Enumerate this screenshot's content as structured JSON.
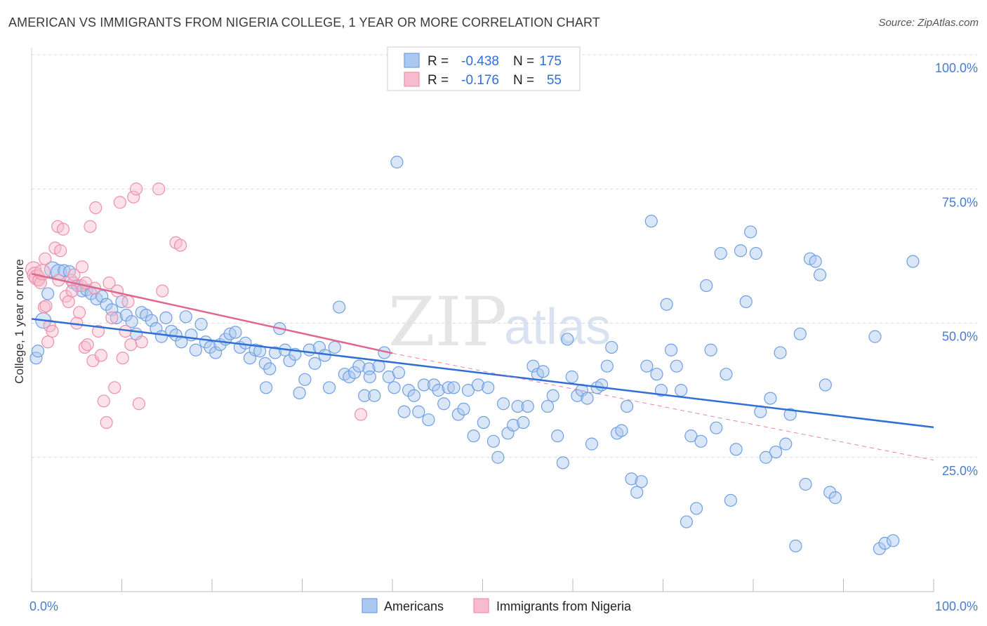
{
  "title": "AMERICAN VS IMMIGRANTS FROM NIGERIA COLLEGE, 1 YEAR OR MORE CORRELATION CHART",
  "source": "Source: ZipAtlas.com",
  "watermark": {
    "zip": "ZIP",
    "atlas": "atlas"
  },
  "colors": {
    "blue": "#6f9fe3",
    "blue_fill": "#aac8f0",
    "blue_line": "#2f6fd6",
    "pink": "#ee8fab",
    "pink_fill": "#f6bccd",
    "pink_line": "#e0668e",
    "grid": "#d9d9d9",
    "tick": "#4a7bd0"
  },
  "legend": {
    "rows": [
      {
        "r_label": "R =",
        "r_value": "-0.438",
        "n_label": "N =",
        "n_value": "175"
      },
      {
        "r_label": "R =",
        "r_value": "-0.176",
        "n_label": "N =",
        "n_value": "55"
      }
    ]
  },
  "bottom_legend": [
    "Americans",
    "Immigrants from Nigeria"
  ],
  "chart_data": {
    "type": "scatter",
    "ylabel": "College, 1 year or more",
    "xlim": [
      0,
      100
    ],
    "ylim": [
      0,
      100
    ],
    "x_tick_labels": [
      "0.0%",
      "100.0%"
    ],
    "y_ticks": [
      25,
      50,
      75,
      100
    ],
    "y_tick_labels": [
      "25.0%",
      "50.0%",
      "75.0%",
      "100.0%"
    ],
    "grid": "horizontal dashed",
    "legend_placement": "top-center",
    "series": [
      {
        "name": "Americans",
        "r": -0.438,
        "n": 175,
        "trend": {
          "x": [
            0,
            100
          ],
          "y": [
            50.8,
            30.6
          ]
        },
        "points": [
          [
            0.5,
            43.5
          ],
          [
            0.7,
            44.8
          ],
          [
            1.3,
            50.5
          ],
          [
            1.8,
            55.5
          ],
          [
            2.3,
            60.0
          ],
          [
            3.0,
            59.5
          ],
          [
            3.6,
            59.8
          ],
          [
            4.2,
            59.6
          ],
          [
            4.6,
            57.5
          ],
          [
            5.1,
            57.0
          ],
          [
            5.6,
            56.0
          ],
          [
            6.1,
            56.2
          ],
          [
            6.6,
            55.5
          ],
          [
            7.2,
            54.5
          ],
          [
            7.8,
            55.0
          ],
          [
            8.3,
            53.5
          ],
          [
            8.9,
            52.5
          ],
          [
            9.4,
            51.0
          ],
          [
            10.0,
            54.0
          ],
          [
            10.5,
            51.5
          ],
          [
            11.1,
            50.3
          ],
          [
            11.6,
            48.0
          ],
          [
            12.2,
            52.0
          ],
          [
            12.7,
            51.5
          ],
          [
            13.3,
            50.5
          ],
          [
            13.8,
            49.0
          ],
          [
            14.4,
            47.5
          ],
          [
            14.9,
            51.0
          ],
          [
            15.5,
            48.5
          ],
          [
            16.0,
            47.8
          ],
          [
            16.6,
            46.5
          ],
          [
            17.1,
            51.2
          ],
          [
            17.7,
            47.8
          ],
          [
            18.2,
            45.0
          ],
          [
            18.8,
            49.8
          ],
          [
            19.3,
            46.5
          ],
          [
            19.8,
            45.5
          ],
          [
            20.4,
            44.5
          ],
          [
            20.9,
            46.0
          ],
          [
            21.5,
            47.0
          ],
          [
            22.0,
            48.0
          ],
          [
            22.6,
            48.3
          ],
          [
            23.1,
            45.5
          ],
          [
            23.7,
            46.3
          ],
          [
            24.2,
            43.5
          ],
          [
            24.8,
            45.0
          ],
          [
            25.3,
            44.8
          ],
          [
            25.9,
            42.5
          ],
          [
            26.4,
            41.5
          ],
          [
            27.0,
            44.5
          ],
          [
            27.5,
            49.0
          ],
          [
            28.1,
            45.0
          ],
          [
            28.6,
            43.0
          ],
          [
            29.2,
            44.2
          ],
          [
            29.7,
            37.0
          ],
          [
            30.3,
            39.5
          ],
          [
            30.8,
            45.0
          ],
          [
            31.4,
            42.5
          ],
          [
            31.9,
            45.5
          ],
          [
            32.5,
            44.0
          ],
          [
            33.0,
            38.0
          ],
          [
            33.6,
            45.5
          ],
          [
            34.1,
            53.0
          ],
          [
            34.7,
            40.5
          ],
          [
            35.2,
            40.0
          ],
          [
            35.8,
            40.8
          ],
          [
            36.3,
            42.0
          ],
          [
            36.9,
            36.5
          ],
          [
            37.4,
            41.5
          ],
          [
            38.0,
            36.5
          ],
          [
            38.5,
            42.0
          ],
          [
            39.1,
            44.5
          ],
          [
            39.6,
            40.0
          ],
          [
            40.2,
            38.0
          ],
          [
            40.7,
            40.8
          ],
          [
            41.3,
            33.5
          ],
          [
            41.8,
            37.5
          ],
          [
            42.4,
            36.5
          ],
          [
            42.9,
            33.5
          ],
          [
            43.5,
            38.5
          ],
          [
            44.0,
            32.0
          ],
          [
            44.6,
            38.5
          ],
          [
            45.1,
            37.5
          ],
          [
            45.7,
            35.0
          ],
          [
            46.2,
            38.0
          ],
          [
            46.8,
            38.0
          ],
          [
            47.3,
            33.0
          ],
          [
            47.9,
            34.0
          ],
          [
            48.4,
            37.5
          ],
          [
            49.0,
            29.0
          ],
          [
            49.5,
            38.5
          ],
          [
            50.1,
            31.5
          ],
          [
            50.6,
            38.0
          ],
          [
            51.2,
            28.0
          ],
          [
            51.7,
            25.0
          ],
          [
            52.3,
            35.0
          ],
          [
            52.8,
            29.5
          ],
          [
            53.4,
            31.0
          ],
          [
            53.9,
            34.5
          ],
          [
            54.5,
            31.5
          ],
          [
            55.0,
            34.5
          ],
          [
            55.6,
            42.0
          ],
          [
            56.1,
            40.5
          ],
          [
            56.7,
            41.0
          ],
          [
            57.2,
            34.5
          ],
          [
            57.8,
            36.5
          ],
          [
            58.3,
            29.0
          ],
          [
            58.9,
            24.0
          ],
          [
            59.4,
            47.0
          ],
          [
            59.9,
            40.0
          ],
          [
            60.5,
            36.5
          ],
          [
            61.0,
            37.5
          ],
          [
            61.6,
            36.0
          ],
          [
            62.1,
            27.5
          ],
          [
            62.7,
            38.0
          ],
          [
            63.2,
            38.5
          ],
          [
            63.8,
            42.0
          ],
          [
            64.3,
            45.5
          ],
          [
            64.9,
            29.5
          ],
          [
            65.4,
            30.0
          ],
          [
            66.0,
            34.5
          ],
          [
            66.5,
            21.0
          ],
          [
            67.1,
            18.5
          ],
          [
            67.6,
            20.5
          ],
          [
            68.2,
            42.0
          ],
          [
            68.7,
            69.0
          ],
          [
            69.3,
            40.5
          ],
          [
            69.8,
            37.5
          ],
          [
            70.4,
            53.5
          ],
          [
            70.9,
            45.0
          ],
          [
            71.5,
            42.0
          ],
          [
            72.0,
            37.5
          ],
          [
            72.6,
            13.0
          ],
          [
            73.1,
            29.0
          ],
          [
            73.7,
            15.5
          ],
          [
            74.2,
            28.0
          ],
          [
            74.8,
            57.0
          ],
          [
            75.3,
            45.0
          ],
          [
            75.9,
            30.5
          ],
          [
            76.4,
            63.0
          ],
          [
            77.0,
            40.5
          ],
          [
            77.5,
            17.0
          ],
          [
            78.1,
            26.5
          ],
          [
            78.6,
            63.5
          ],
          [
            79.2,
            54.0
          ],
          [
            79.7,
            67.0
          ],
          [
            80.3,
            63.0
          ],
          [
            80.8,
            33.5
          ],
          [
            81.4,
            25.0
          ],
          [
            81.9,
            36.0
          ],
          [
            82.5,
            26.0
          ],
          [
            83.0,
            44.5
          ],
          [
            83.6,
            27.5
          ],
          [
            84.1,
            33.0
          ],
          [
            84.7,
            8.5
          ],
          [
            85.2,
            48.0
          ],
          [
            85.8,
            20.0
          ],
          [
            86.3,
            62.0
          ],
          [
            86.9,
            61.5
          ],
          [
            87.4,
            59.0
          ],
          [
            88.0,
            38.5
          ],
          [
            88.5,
            18.5
          ],
          [
            89.1,
            17.5
          ],
          [
            93.5,
            47.5
          ],
          [
            94.0,
            8.0
          ],
          [
            94.6,
            9.0
          ],
          [
            97.7,
            61.5
          ],
          [
            95.5,
            9.5
          ],
          [
            40.5,
            80.0
          ],
          [
            37.5,
            40.0
          ],
          [
            26.0,
            38.0
          ]
        ]
      },
      {
        "name": "Immigrants from Nigeria",
        "r": -0.176,
        "n": 55,
        "trend": {
          "x": [
            0,
            40
          ],
          "y": [
            59.2,
            44.4
          ],
          "dashed_to": {
            "x": 100,
            "y": 24.5
          }
        },
        "points": [
          [
            0.2,
            60.0
          ],
          [
            0.4,
            59.0
          ],
          [
            0.6,
            58.5
          ],
          [
            0.8,
            58.0
          ],
          [
            1.0,
            57.5
          ],
          [
            1.2,
            59.5
          ],
          [
            1.4,
            53.0
          ],
          [
            1.6,
            53.2
          ],
          [
            1.8,
            46.5
          ],
          [
            2.0,
            49.5
          ],
          [
            2.3,
            48.5
          ],
          [
            2.6,
            64.0
          ],
          [
            2.9,
            68.0
          ],
          [
            3.2,
            63.5
          ],
          [
            3.5,
            67.5
          ],
          [
            3.8,
            55.0
          ],
          [
            4.1,
            54.0
          ],
          [
            4.4,
            58.0
          ],
          [
            4.7,
            59.0
          ],
          [
            5.0,
            50.0
          ],
          [
            5.3,
            52.0
          ],
          [
            5.6,
            60.5
          ],
          [
            5.9,
            45.5
          ],
          [
            6.2,
            46.0
          ],
          [
            6.5,
            68.0
          ],
          [
            6.8,
            43.0
          ],
          [
            7.1,
            71.5
          ],
          [
            7.4,
            48.5
          ],
          [
            7.7,
            44.0
          ],
          [
            8.0,
            35.5
          ],
          [
            8.3,
            31.5
          ],
          [
            8.6,
            57.5
          ],
          [
            8.9,
            51.0
          ],
          [
            9.2,
            38.0
          ],
          [
            9.5,
            56.0
          ],
          [
            9.8,
            72.5
          ],
          [
            10.1,
            43.5
          ],
          [
            10.4,
            48.5
          ],
          [
            10.7,
            54.0
          ],
          [
            11.0,
            46.0
          ],
          [
            11.3,
            73.5
          ],
          [
            11.6,
            75.0
          ],
          [
            11.9,
            35.0
          ],
          [
            12.2,
            46.5
          ],
          [
            14.1,
            75.0
          ],
          [
            14.5,
            56.0
          ],
          [
            16.0,
            65.0
          ],
          [
            16.5,
            64.5
          ],
          [
            36.5,
            33.0
          ],
          [
            3.0,
            58.0
          ],
          [
            5.5,
            57.0
          ],
          [
            6.0,
            57.5
          ],
          [
            7.0,
            56.5
          ],
          [
            4.5,
            56.0
          ],
          [
            1.5,
            62.0
          ]
        ]
      }
    ]
  }
}
